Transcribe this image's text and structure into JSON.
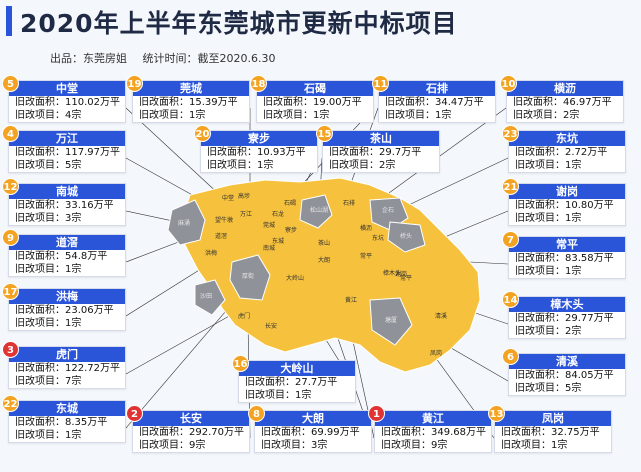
{
  "title": "2020年上半年东莞城市更新中标项目",
  "meta": {
    "source": "出品：东莞房姐",
    "time": "统计时间：截至2020.6.30"
  },
  "cards": [
    {
      "rank": "5",
      "name": "中堂",
      "area": "旧改面积：110.02万平",
      "count": "旧改项目：4宗"
    },
    {
      "rank": "19",
      "name": "莞城",
      "area": "旧改面积：15.39万平",
      "count": "旧改项目：1宗"
    },
    {
      "rank": "18",
      "name": "石碣",
      "area": "旧改面积：19.00万平",
      "count": "旧改项目：1宗"
    },
    {
      "rank": "11",
      "name": "石排",
      "area": "旧改面积：34.47万平",
      "count": "旧改项目：1宗"
    },
    {
      "rank": "10",
      "name": "横沥",
      "area": "旧改面积：46.97万平",
      "count": "旧改项目：2宗"
    },
    {
      "rank": "4",
      "name": "万江",
      "area": "旧改面积：117.97万平",
      "count": "旧改项目：5宗"
    },
    {
      "rank": "20",
      "name": "寮步",
      "area": "旧改面积：10.93万平",
      "count": "旧改项目：1宗"
    },
    {
      "rank": "15",
      "name": "茶山",
      "area": "旧改面积：29.7万平",
      "count": "旧改项目：2宗"
    },
    {
      "rank": "23",
      "name": "东坑",
      "area": "旧改面积：2.72万平",
      "count": "旧改项目：1宗"
    },
    {
      "rank": "12",
      "name": "南城",
      "area": "旧改面积：33.16万平",
      "count": "旧改项目：3宗"
    },
    {
      "rank": "21",
      "name": "谢岗",
      "area": "旧改面积：10.80万平",
      "count": "旧改项目：1宗"
    },
    {
      "rank": "9",
      "name": "道滘",
      "area": "旧改面积：54.8万平",
      "count": "旧改项目：1宗"
    },
    {
      "rank": "7",
      "name": "常平",
      "area": "旧改面积：83.58万平",
      "count": "旧改项目：1宗"
    },
    {
      "rank": "17",
      "name": "洪梅",
      "area": "旧改面积：23.06万平",
      "count": "旧改项目：1宗"
    },
    {
      "rank": "14",
      "name": "樟木头",
      "area": "旧改面积：29.77万平",
      "count": "旧改项目：2宗"
    },
    {
      "rank": "3",
      "name": "虎门",
      "area": "旧改面积：122.72万平",
      "count": "旧改项目：7宗"
    },
    {
      "rank": "16",
      "name": "大岭山",
      "area": "旧改面积：27.7万平",
      "count": "旧改项目：1宗"
    },
    {
      "rank": "6",
      "name": "清溪",
      "area": "旧改面积：84.05万平",
      "count": "旧改项目：5宗"
    },
    {
      "rank": "22",
      "name": "东城",
      "area": "旧改面积：8.35万平",
      "count": "旧改项目：1宗"
    },
    {
      "rank": "2",
      "name": "长安",
      "area": "旧改面积：292.70万平",
      "count": "旧改项目：9宗"
    },
    {
      "rank": "8",
      "name": "大朗",
      "area": "旧改面积：69.99万平",
      "count": "旧改项目：3宗"
    },
    {
      "rank": "1",
      "name": "黄江",
      "area": "旧改面积：349.68万平",
      "count": "旧改项目：9宗"
    },
    {
      "rank": "13",
      "name": "凤岗",
      "area": "旧改面积：32.75万平",
      "count": "旧改项目：1宗"
    }
  ],
  "map_labels": {
    "yellow": [
      "中堂",
      "望牛墩",
      "万江",
      "高埗",
      "石碣",
      "石龙",
      "莞城",
      "东城",
      "南城",
      "石排",
      "茶山",
      "横沥",
      "东坑",
      "寮步",
      "常平",
      "道滘",
      "洪梅",
      "大岭山",
      "大朗",
      "黄江",
      "樟木头",
      "谢岗",
      "常平",
      "清溪",
      "凤岗",
      "虎门",
      "长安"
    ],
    "gray": [
      "麻涌",
      "沙田",
      "厚街",
      "松山湖",
      "企石",
      "桥头",
      "塘厦"
    ]
  },
  "colors": {
    "accent": "#2b55d9",
    "highlight": "#f6c13c",
    "gray_region": "#8f9399",
    "rank_orange": "#f3a321",
    "rank_red": "#e03434"
  }
}
